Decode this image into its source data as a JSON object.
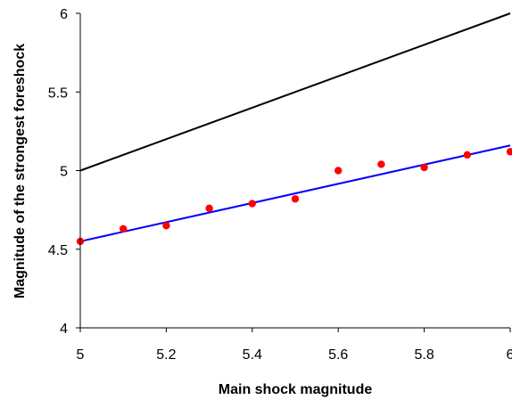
{
  "chart_data": {
    "type": "scatter",
    "xlabel": "Main shock magnitude",
    "ylabel": "Magnitude of the strongest foreshock",
    "xlim": [
      5,
      6
    ],
    "ylim": [
      4,
      6
    ],
    "x_ticks": [
      5,
      5.2,
      5.4,
      5.6,
      5.8,
      6
    ],
    "x_tick_labels": [
      "5",
      "5.2",
      "5.4",
      "5.6",
      "5.8",
      "6"
    ],
    "y_ticks": [
      4,
      4.5,
      5,
      5.5,
      6
    ],
    "y_tick_labels": [
      "4",
      "4.5",
      "5",
      "5.5",
      "6"
    ],
    "grid": false,
    "series": [
      {
        "kind": "scatter",
        "color": "#ff0000",
        "x": [
          5.0,
          5.1,
          5.2,
          5.3,
          5.4,
          5.5,
          5.6,
          5.7,
          5.8,
          5.9,
          6.0
        ],
        "y": [
          4.55,
          4.63,
          4.65,
          4.76,
          4.79,
          4.82,
          5.0,
          5.04,
          5.02,
          5.1,
          5.12
        ]
      },
      {
        "kind": "line",
        "color": "#0000ff",
        "x": [
          5.0,
          6.0
        ],
        "y": [
          4.55,
          5.16
        ]
      },
      {
        "kind": "line",
        "color": "#000000",
        "x": [
          5.0,
          6.0
        ],
        "y": [
          5.0,
          6.0
        ]
      }
    ]
  }
}
